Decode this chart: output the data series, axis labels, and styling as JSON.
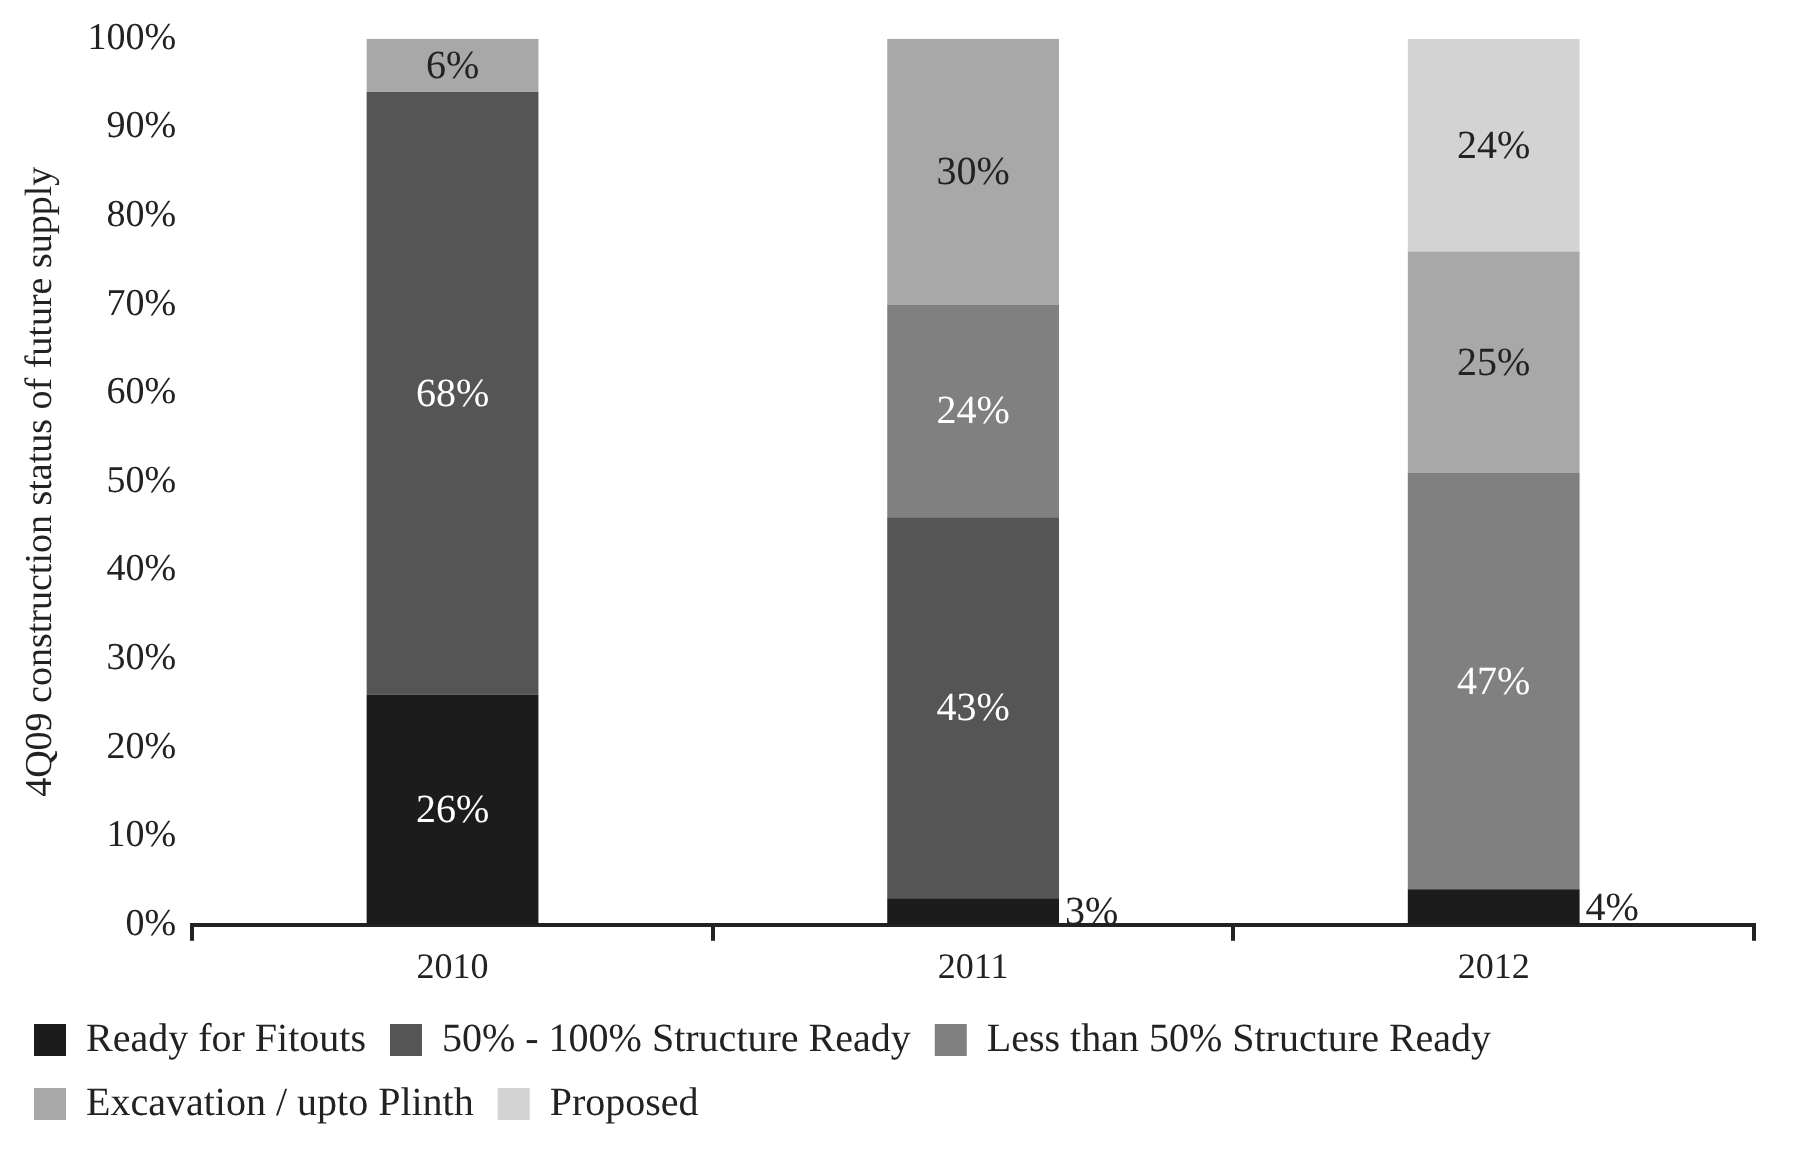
{
  "chart_data": {
    "type": "bar",
    "stacked": true,
    "ylabel": "4Q09 construction status of future supply",
    "categories": [
      "2010",
      "2011",
      "2012"
    ],
    "series": [
      {
        "name": "Ready for Fitouts",
        "color": "#1c1c1c",
        "values": [
          26,
          3,
          4
        ],
        "value_labels": [
          "26%",
          "3%",
          "4%"
        ]
      },
      {
        "name": "50% - 100% Structure Ready",
        "color": "#555555",
        "values": [
          68,
          43,
          0
        ],
        "value_labels": [
          "68%",
          "43%",
          null
        ]
      },
      {
        "name": "Less than 50% Structure Ready",
        "color": "#808080",
        "values": [
          0,
          24,
          47
        ],
        "value_labels": [
          null,
          "24%",
          "47%"
        ]
      },
      {
        "name": "Excavation / upto Plinth",
        "color": "#a8a8a8",
        "values": [
          6,
          30,
          25
        ],
        "value_labels": [
          "6%",
          "30%",
          "25%"
        ]
      },
      {
        "name": "Proposed",
        "color": "#d3d3d3",
        "values": [
          0,
          0,
          24
        ],
        "value_labels": [
          null,
          null,
          "24%"
        ]
      }
    ],
    "ylim": [
      0,
      100
    ],
    "yticks": [
      {
        "value": 0,
        "label": "0%"
      },
      {
        "value": 10,
        "label": "10%"
      },
      {
        "value": 20,
        "label": "20%"
      },
      {
        "value": 30,
        "label": "30%"
      },
      {
        "value": 40,
        "label": "40%"
      },
      {
        "value": 50,
        "label": "50%"
      },
      {
        "value": 60,
        "label": "60%"
      },
      {
        "value": 70,
        "label": "70%"
      },
      {
        "value": 80,
        "label": "80%"
      },
      {
        "value": 90,
        "label": "90%"
      },
      {
        "value": 100,
        "label": "100%"
      }
    ],
    "grid": false,
    "legend": "bottom"
  }
}
